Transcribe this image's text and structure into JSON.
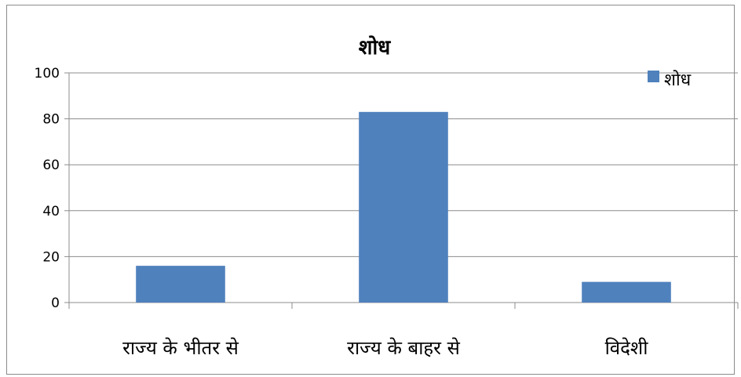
{
  "chart_data": {
    "type": "bar",
    "title": "शोध",
    "categories": [
      "राज्य के भीतर से",
      "राज्य के बाहर से",
      "विदेशी"
    ],
    "series": [
      {
        "name": "शोध",
        "values": [
          16,
          83,
          9
        ],
        "color": "#4f81bd"
      }
    ],
    "ylim": [
      0,
      100
    ],
    "yticks": [
      0,
      20,
      40,
      60,
      80,
      100
    ],
    "grid": true,
    "legend_position": "top-right",
    "gridline_color": "#8c8c8c"
  }
}
